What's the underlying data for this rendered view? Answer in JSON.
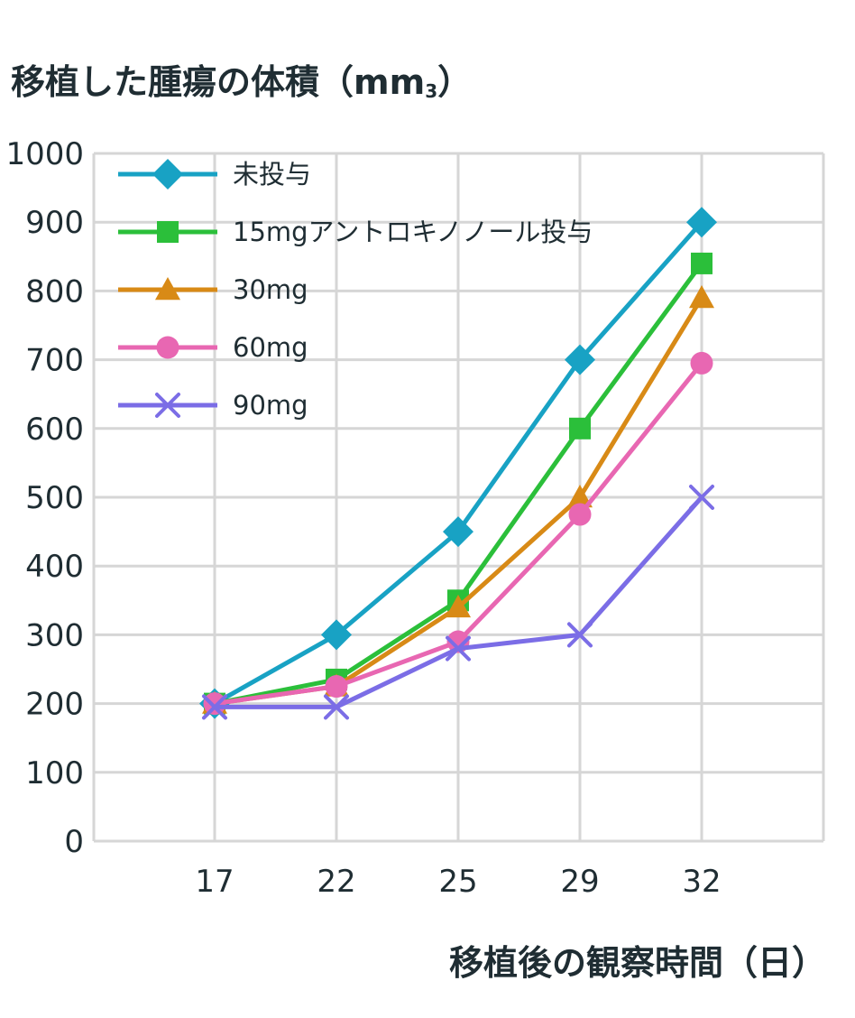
{
  "chart_data": {
    "type": "line",
    "title": "",
    "ylabel": "移植した腫瘍の体積（mm",
    "ylabel_sub": "3",
    "ylabel_close": "）",
    "xlabel": "移植後の観察時間（日）",
    "categories": [
      "17",
      "22",
      "25",
      "29",
      "32"
    ],
    "ylim": [
      0,
      1000
    ],
    "yticks": [
      "0",
      "100",
      "200",
      "300",
      "400",
      "500",
      "600",
      "700",
      "800",
      "900",
      "1000"
    ],
    "grid": true,
    "legend_position": "top-left",
    "series": [
      {
        "name": "未投与",
        "values": [
          200,
          300,
          450,
          700,
          900
        ],
        "color": "#18a2c4",
        "marker": "diamond"
      },
      {
        "name": "15mgアントロキノノール投与",
        "values": [
          200,
          235,
          350,
          600,
          840
        ],
        "color": "#2bbf3a",
        "marker": "square"
      },
      {
        "name": "30mg",
        "values": [
          200,
          225,
          340,
          500,
          790
        ],
        "color": "#d88a16",
        "marker": "triangle"
      },
      {
        "name": "60mg",
        "values": [
          200,
          225,
          290,
          475,
          695
        ],
        "color": "#e867b2",
        "marker": "circle"
      },
      {
        "name": "90mg",
        "values": [
          195,
          195,
          280,
          300,
          500
        ],
        "color": "#7b6de6",
        "marker": "x"
      }
    ]
  }
}
